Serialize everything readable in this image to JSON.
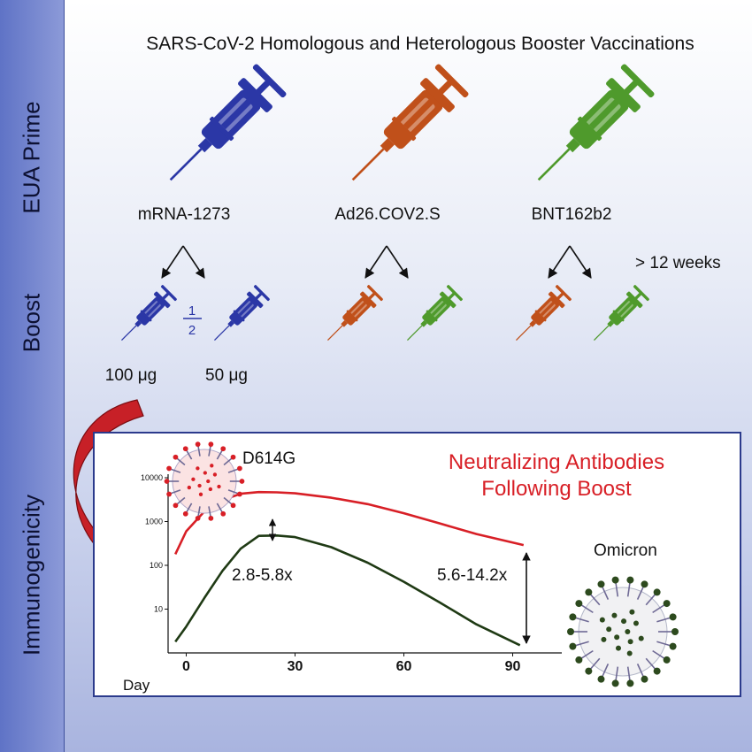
{
  "header": {
    "title": "SARS-CoV-2 Homologous and Heterologous Booster Vaccinations"
  },
  "sidebar": {
    "prime_label": "EUA Prime",
    "boost_label": "Boost",
    "immuno_label": "Immunogenicity"
  },
  "prime": {
    "vaccines": [
      "mRNA-1273",
      "Ad26.COV2.S",
      "BNT162b2"
    ]
  },
  "boost": {
    "interval": "> 12 weeks",
    "half_numerator": "1",
    "half_denominator": "2",
    "dose_full": "100 μg",
    "dose_half": "50 μg"
  },
  "colors": {
    "mrna1273": "#2b37a6",
    "ad26": "#c0501a",
    "bnt162b2": "#4f9a2c",
    "d614g": "#d81f26",
    "omicron": "#1f3a14"
  },
  "chart": {
    "title_line1": "Neutralizing Antibodies",
    "title_line2": "Following Boost",
    "variant_d614g": "D614G",
    "variant_omicron": "Omicron",
    "fold_peak": "2.8-5.8x",
    "fold_late": "5.6-14.2x",
    "x_axis_label": "Day",
    "x_ticks": [
      "0",
      "30",
      "60",
      "90"
    ],
    "y_ticks": [
      "10000",
      "1000",
      "100",
      "10"
    ]
  },
  "chart_data": {
    "type": "line",
    "xlabel": "Day",
    "ylabel": "",
    "y_scale": "log",
    "ylim": [
      1,
      10000
    ],
    "xlim": [
      -5,
      95
    ],
    "series": [
      {
        "name": "D614G",
        "x": [
          -3,
          0,
          5,
          10,
          15,
          20,
          25,
          30,
          40,
          50,
          60,
          70,
          80,
          93
        ],
        "y": [
          180,
          600,
          1700,
          3100,
          4300,
          4700,
          4650,
          4400,
          3500,
          2500,
          1550,
          900,
          520,
          290
        ]
      },
      {
        "name": "Omicron",
        "x": [
          -3,
          0,
          5,
          10,
          15,
          20,
          25,
          30,
          40,
          50,
          60,
          70,
          80,
          92
        ],
        "y": [
          1.8,
          4,
          18,
          75,
          240,
          470,
          480,
          440,
          260,
          115,
          42,
          14,
          4.5,
          1.5
        ]
      }
    ],
    "annotations": [
      "2.8-5.8x",
      "5.6-14.2x"
    ]
  }
}
